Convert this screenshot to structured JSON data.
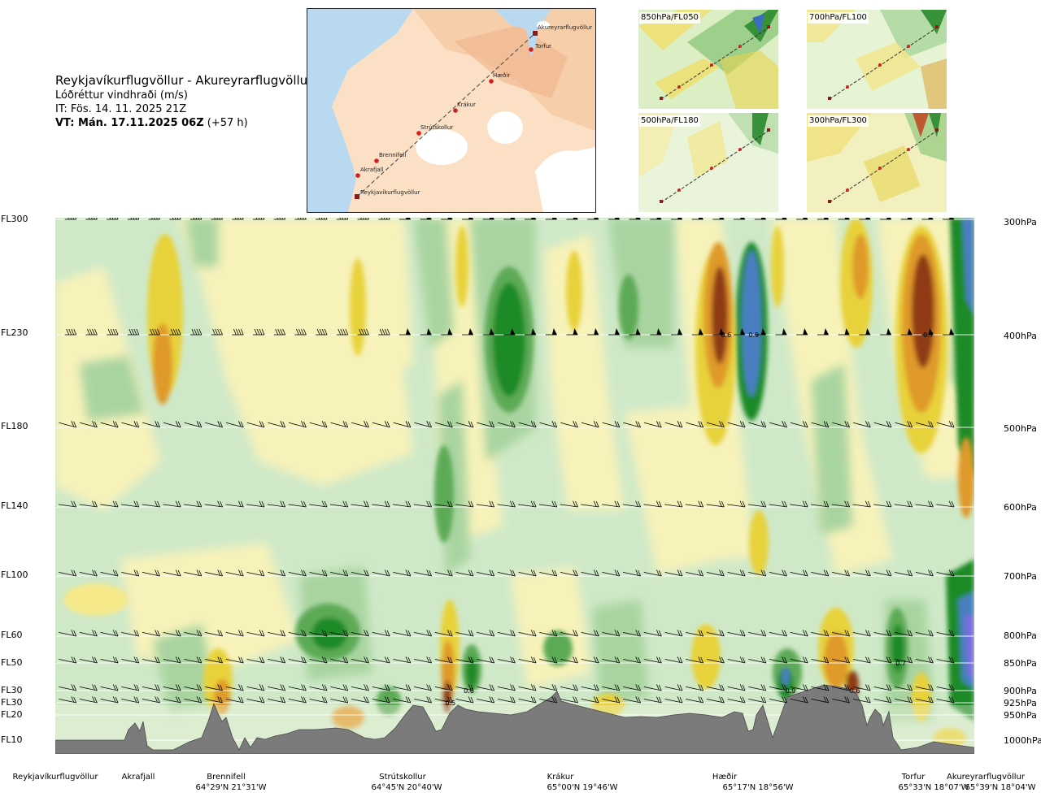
{
  "header": {
    "title": "Reykjavíkurflugvöllur - Akureyrarflugvöllur",
    "subtitle": "Lóðréttur vindhraði (m/s)",
    "it_line": "IT: Fös. 14. 11. 2025 21Z",
    "vt_bold": "VT: Mán. 17.11.2025 06Z",
    "vt_offset": "(+57 h)"
  },
  "map": {
    "waypoints": [
      "Akureyrarflugvöllur",
      "Torfur",
      "Hæðir",
      "Krákur",
      "Strútskollur",
      "Brennifell",
      "Akrafjall",
      "Reykjavíkurflugvöllur"
    ]
  },
  "panels": [
    {
      "label": "850hPa/FL050"
    },
    {
      "label": "700hPa/FL100"
    },
    {
      "label": "500hPa/FL180"
    },
    {
      "label": "300hPa/FL300"
    }
  ],
  "left_axis": [
    "FL300",
    "FL230",
    "FL180",
    "FL140",
    "FL100",
    "FL60",
    "FL50",
    "FL30",
    "FL30",
    "FL20",
    "FL10"
  ],
  "right_axis": [
    "300hPa",
    "400hPa",
    "500hPa",
    "600hPa",
    "700hPa",
    "800hPa",
    "850hPa",
    "900hPa",
    "925hPa",
    "950hPa",
    "1000hPa"
  ],
  "bottom_waypoints": [
    {
      "name": "Reykjavíkurflugvöllur",
      "coord": ""
    },
    {
      "name": "Akrafjall",
      "coord": ""
    },
    {
      "name": "Brennifell",
      "coord": "64°29'N 21°31'W"
    },
    {
      "name": "Strútskollur",
      "coord": "64°45'N 20°40'W"
    },
    {
      "name": "Krákur",
      "coord": "65°00'N 19°46'W"
    },
    {
      "name": "Hæðir",
      "coord": "65°17'N 18°56'W"
    },
    {
      "name": "Torfur",
      "coord": "65°33'N 18°07'W"
    },
    {
      "name": "Akureyrarflugvöllur",
      "coord": "65°39'N 18°04'W"
    }
  ],
  "chart_data": {
    "type": "heatmap",
    "title": "Reykjavíkurflugvöllur - Akureyrarflugvöllur",
    "subtitle": "Lóðréttur vindhraði (m/s)",
    "y_levels_hpa": [
      300,
      400,
      500,
      600,
      700,
      800,
      850,
      900,
      925,
      950,
      1000
    ],
    "y_flight_levels": [
      "FL300",
      "FL230",
      "FL180",
      "FL140",
      "FL100",
      "FL60",
      "FL50",
      "FL30",
      "FL30",
      "FL20",
      "FL10"
    ],
    "contour_labels": [
      {
        "level_hpa": 400,
        "along_fraction": 0.73,
        "value": "0.6"
      },
      {
        "level_hpa": 400,
        "along_fraction": 0.76,
        "value": "0.9"
      },
      {
        "level_hpa": 400,
        "along_fraction": 0.95,
        "value": "0.7"
      },
      {
        "level_hpa": 850,
        "along_fraction": 0.92,
        "value": "0.7"
      },
      {
        "level_hpa": 900,
        "along_fraction": 0.45,
        "value": "0.6"
      },
      {
        "level_hpa": 900,
        "along_fraction": 0.8,
        "value": "0.9"
      },
      {
        "level_hpa": 900,
        "along_fraction": 0.87,
        "value": "0.6"
      },
      {
        "level_hpa": 925,
        "along_fraction": 0.43,
        "value": "0.5"
      }
    ],
    "colors": {
      "strong_up_blue": "#4a7fc1",
      "up_dark_green": "#1e8a28",
      "up_green": "#5daa56",
      "up_mid_green": "#a9d4a0",
      "up_light_green": "#cfe9c8",
      "neutral": "#f4f7e6",
      "down_light_yellow": "#f8f1ae",
      "down_yellow": "#e8d23a",
      "down_orange": "#df9a2a",
      "down_brown": "#8f3a14",
      "terrain": "#7b7b7b",
      "violet": "#7a6ae0"
    }
  }
}
